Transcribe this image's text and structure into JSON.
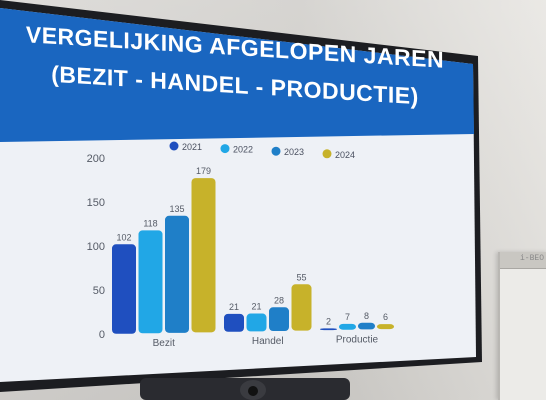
{
  "title": {
    "line1": "VERGELIJKING AFGELOPEN JAREN",
    "line2": "(BEZIT - HANDEL - PRODUCTIE)"
  },
  "flipchart_text": "i-BEO",
  "colors": {
    "banner": "#1a66c0",
    "2021": "#1f4fbf",
    "2022": "#21a7e6",
    "2023": "#1f7fc8",
    "2024": "#c7b22a"
  },
  "chart_data": {
    "type": "bar",
    "categories": [
      "Bezit",
      "Handel",
      "Productie"
    ],
    "series": [
      {
        "name": "2021",
        "values": [
          102,
          21,
          2
        ]
      },
      {
        "name": "2022",
        "values": [
          118,
          21,
          7
        ]
      },
      {
        "name": "2023",
        "values": [
          135,
          28,
          8
        ]
      },
      {
        "name": "2024",
        "values": [
          179,
          55,
          6
        ]
      }
    ],
    "y_ticks": [
      "0",
      "50",
      "100",
      "150",
      "200"
    ],
    "ylim": [
      0,
      200
    ],
    "legend_position": "top",
    "grid": false
  }
}
